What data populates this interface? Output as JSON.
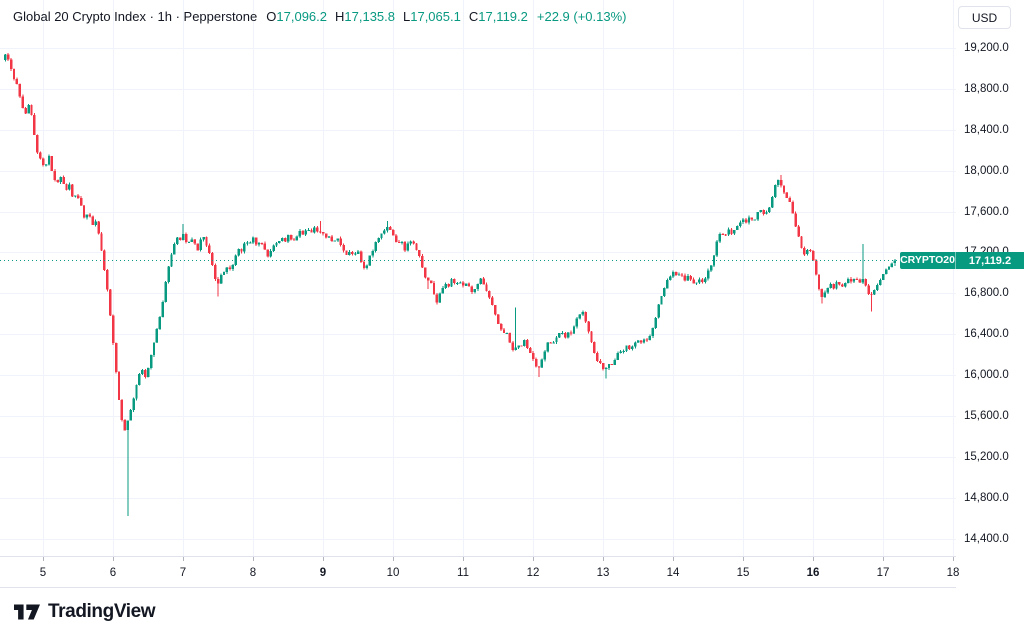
{
  "header": {
    "title": "Global 20 Crypto Index · 1h · Pepperstone",
    "ohlc": [
      {
        "label": "O",
        "value": "17,096.2"
      },
      {
        "label": "H",
        "value": "17,135.8"
      },
      {
        "label": "L",
        "value": "17,065.1"
      },
      {
        "label": "C",
        "value": "17,119.2"
      }
    ],
    "change": "+22.9 (+0.13%)"
  },
  "toolbar": {
    "currency_label": "USD"
  },
  "footer": {
    "logo_text": "TradingView"
  },
  "price_scale": {
    "ticks": [
      {
        "text": "19,200.0",
        "value": 19200
      },
      {
        "text": "18,800.0",
        "value": 18800
      },
      {
        "text": "18,400.0",
        "value": 18400
      },
      {
        "text": "18,000.0",
        "value": 18000
      },
      {
        "text": "17,600.0",
        "value": 17600
      },
      {
        "text": "17,200.0",
        "value": 17200
      },
      {
        "text": "16,800.0",
        "value": 16800
      },
      {
        "text": "16,400.0",
        "value": 16400
      },
      {
        "text": "16,000.0",
        "value": 16000
      },
      {
        "text": "15,600.0",
        "value": 15600
      },
      {
        "text": "15,200.0",
        "value": 15200
      },
      {
        "text": "14,800.0",
        "value": 14800
      },
      {
        "text": "14,400.0",
        "value": 14400
      }
    ],
    "current": {
      "symbol": "CRYPTO20",
      "text": "17,119.2",
      "value": 17119.2
    }
  },
  "time_scale": {
    "ticks": [
      {
        "text": "5",
        "value": 5,
        "bold": false
      },
      {
        "text": "6",
        "value": 6,
        "bold": false
      },
      {
        "text": "7",
        "value": 7,
        "bold": false
      },
      {
        "text": "8",
        "value": 8,
        "bold": false
      },
      {
        "text": "9",
        "value": 9,
        "bold": true
      },
      {
        "text": "10",
        "value": 10,
        "bold": false
      },
      {
        "text": "11",
        "value": 11,
        "bold": false
      },
      {
        "text": "12",
        "value": 12,
        "bold": false
      },
      {
        "text": "13",
        "value": 13,
        "bold": false
      },
      {
        "text": "14",
        "value": 14,
        "bold": false
      },
      {
        "text": "15",
        "value": 15,
        "bold": false
      },
      {
        "text": "16",
        "value": 16,
        "bold": true
      },
      {
        "text": "17",
        "value": 17,
        "bold": false
      },
      {
        "text": "18",
        "value": 18,
        "bold": false
      }
    ]
  },
  "colors": {
    "up": "#089981",
    "down": "#F23645",
    "text": "#131722",
    "grid": "#F0F3FA",
    "axis_border": "#E0E3EB",
    "tick": "#B2B5BE",
    "background": "#FFFFFF",
    "badge": "#089981"
  },
  "chart_data": {
    "type": "candlestick",
    "title": "Global 20 Crypto Index",
    "interval": "1h",
    "provider": "Pepperstone",
    "quote_currency": "USD",
    "last_candle": {
      "open": 17096.2,
      "high": 17135.8,
      "low": 17065.1,
      "close": 17119.2,
      "change": "+22.9",
      "change_pct": "+0.13%"
    },
    "current_price": 17119.2,
    "y_axis": {
      "first_tick": 14400,
      "last_tick": 19200,
      "tick_step": 400
    },
    "x_axis": {
      "label_unit": "day_of_month",
      "start_day": 4.44,
      "end_day": 17.19,
      "days": [
        5,
        6,
        7,
        8,
        9,
        10,
        11,
        12,
        13,
        14,
        15,
        16,
        17,
        18
      ],
      "bold_days": [
        9,
        16
      ]
    },
    "candles_per_day": 24,
    "session_low_wick": 14620,
    "session_high_wick": 19150,
    "price_path_waypoints": [
      [
        4.44,
        19090
      ],
      [
        4.5,
        19140
      ],
      [
        4.58,
        18950
      ],
      [
        4.66,
        18820
      ],
      [
        4.72,
        18640
      ],
      [
        4.78,
        18560
      ],
      [
        4.83,
        18660
      ],
      [
        4.88,
        18420
      ],
      [
        4.94,
        18180
      ],
      [
        5.0,
        18090
      ],
      [
        5.05,
        18010
      ],
      [
        5.1,
        18160
      ],
      [
        5.16,
        17960
      ],
      [
        5.22,
        17860
      ],
      [
        5.28,
        17950
      ],
      [
        5.34,
        17810
      ],
      [
        5.4,
        17860
      ],
      [
        5.45,
        17710
      ],
      [
        5.5,
        17790
      ],
      [
        5.56,
        17660
      ],
      [
        5.62,
        17520
      ],
      [
        5.67,
        17610
      ],
      [
        5.72,
        17470
      ],
      [
        5.78,
        17520
      ],
      [
        5.83,
        17320
      ],
      [
        5.88,
        17120
      ],
      [
        5.93,
        16900
      ],
      [
        5.98,
        16580
      ],
      [
        6.03,
        16280
      ],
      [
        6.08,
        15920
      ],
      [
        6.12,
        15680
      ],
      [
        6.16,
        15520
      ],
      [
        6.2,
        15440
      ],
      [
        6.24,
        15580
      ],
      [
        6.28,
        15680
      ],
      [
        6.33,
        15820
      ],
      [
        6.38,
        15960
      ],
      [
        6.43,
        16090
      ],
      [
        6.47,
        15940
      ],
      [
        6.52,
        16060
      ],
      [
        6.57,
        16220
      ],
      [
        6.62,
        16360
      ],
      [
        6.67,
        16500
      ],
      [
        6.72,
        16660
      ],
      [
        6.78,
        16950
      ],
      [
        6.83,
        17110
      ],
      [
        6.88,
        17260
      ],
      [
        6.93,
        17350
      ],
      [
        6.98,
        17310
      ],
      [
        7.03,
        17400
      ],
      [
        7.08,
        17260
      ],
      [
        7.13,
        17330
      ],
      [
        7.19,
        17290
      ],
      [
        7.24,
        17210
      ],
      [
        7.29,
        17380
      ],
      [
        7.34,
        17300
      ],
      [
        7.4,
        17190
      ],
      [
        7.45,
        17040
      ],
      [
        7.5,
        16860
      ],
      [
        7.55,
        16950
      ],
      [
        7.6,
        17010
      ],
      [
        7.65,
        17060
      ],
      [
        7.71,
        17010
      ],
      [
        7.76,
        17150
      ],
      [
        7.81,
        17250
      ],
      [
        7.86,
        17210
      ],
      [
        7.91,
        17300
      ],
      [
        7.96,
        17280
      ],
      [
        8.02,
        17350
      ],
      [
        8.07,
        17260
      ],
      [
        8.12,
        17310
      ],
      [
        8.17,
        17280
      ],
      [
        8.22,
        17160
      ],
      [
        8.28,
        17210
      ],
      [
        8.33,
        17300
      ],
      [
        8.38,
        17280
      ],
      [
        8.43,
        17350
      ],
      [
        8.48,
        17310
      ],
      [
        8.53,
        17380
      ],
      [
        8.58,
        17310
      ],
      [
        8.64,
        17350
      ],
      [
        8.69,
        17410
      ],
      [
        8.74,
        17360
      ],
      [
        8.79,
        17430
      ],
      [
        8.84,
        17390
      ],
      [
        8.9,
        17440
      ],
      [
        8.95,
        17390
      ],
      [
        9.0,
        17420
      ],
      [
        9.05,
        17330
      ],
      [
        9.1,
        17360
      ],
      [
        9.16,
        17290
      ],
      [
        9.21,
        17350
      ],
      [
        9.26,
        17300
      ],
      [
        9.31,
        17210
      ],
      [
        9.36,
        17160
      ],
      [
        9.41,
        17230
      ],
      [
        9.46,
        17160
      ],
      [
        9.52,
        17210
      ],
      [
        9.57,
        17080
      ],
      [
        9.62,
        17020
      ],
      [
        9.67,
        17130
      ],
      [
        9.72,
        17200
      ],
      [
        9.78,
        17300
      ],
      [
        9.83,
        17370
      ],
      [
        9.88,
        17380
      ],
      [
        9.93,
        17450
      ],
      [
        9.98,
        17420
      ],
      [
        10.03,
        17360
      ],
      [
        10.08,
        17290
      ],
      [
        10.14,
        17330
      ],
      [
        10.19,
        17230
      ],
      [
        10.24,
        17290
      ],
      [
        10.29,
        17330
      ],
      [
        10.34,
        17250
      ],
      [
        10.4,
        17150
      ],
      [
        10.45,
        17040
      ],
      [
        10.5,
        16900
      ],
      [
        10.55,
        16950
      ],
      [
        10.6,
        16800
      ],
      [
        10.65,
        16720
      ],
      [
        10.71,
        16830
      ],
      [
        10.76,
        16900
      ],
      [
        10.81,
        16870
      ],
      [
        10.86,
        16940
      ],
      [
        10.91,
        16880
      ],
      [
        10.97,
        16930
      ],
      [
        11.02,
        16860
      ],
      [
        11.07,
        16910
      ],
      [
        11.12,
        16850
      ],
      [
        11.17,
        16800
      ],
      [
        11.22,
        16880
      ],
      [
        11.28,
        16950
      ],
      [
        11.33,
        16860
      ],
      [
        11.38,
        16800
      ],
      [
        11.43,
        16700
      ],
      [
        11.48,
        16600
      ],
      [
        11.54,
        16480
      ],
      [
        11.59,
        16400
      ],
      [
        11.64,
        16430
      ],
      [
        11.69,
        16310
      ],
      [
        11.74,
        16230
      ],
      [
        11.8,
        16310
      ],
      [
        11.85,
        16260
      ],
      [
        11.9,
        16340
      ],
      [
        11.95,
        16260
      ],
      [
        12.0,
        16200
      ],
      [
        12.05,
        16110
      ],
      [
        12.1,
        16060
      ],
      [
        12.16,
        16160
      ],
      [
        12.21,
        16280
      ],
      [
        12.26,
        16340
      ],
      [
        12.31,
        16300
      ],
      [
        12.36,
        16380
      ],
      [
        12.42,
        16430
      ],
      [
        12.47,
        16360
      ],
      [
        12.52,
        16430
      ],
      [
        12.57,
        16390
      ],
      [
        12.62,
        16520
      ],
      [
        12.68,
        16600
      ],
      [
        12.73,
        16620
      ],
      [
        12.78,
        16520
      ],
      [
        12.83,
        16380
      ],
      [
        12.88,
        16250
      ],
      [
        12.94,
        16150
      ],
      [
        12.99,
        16100
      ],
      [
        13.04,
        16040
      ],
      [
        13.09,
        16120
      ],
      [
        13.14,
        16080
      ],
      [
        13.2,
        16170
      ],
      [
        13.25,
        16250
      ],
      [
        13.3,
        16200
      ],
      [
        13.35,
        16280
      ],
      [
        13.4,
        16250
      ],
      [
        13.46,
        16310
      ],
      [
        13.51,
        16360
      ],
      [
        13.56,
        16300
      ],
      [
        13.61,
        16350
      ],
      [
        13.66,
        16330
      ],
      [
        13.72,
        16420
      ],
      [
        13.77,
        16560
      ],
      [
        13.82,
        16700
      ],
      [
        13.87,
        16810
      ],
      [
        13.92,
        16900
      ],
      [
        13.98,
        16960
      ],
      [
        14.03,
        17020
      ],
      [
        14.08,
        16950
      ],
      [
        14.13,
        17000
      ],
      [
        14.18,
        16930
      ],
      [
        14.24,
        16980
      ],
      [
        14.29,
        16900
      ],
      [
        14.34,
        16870
      ],
      [
        14.39,
        16950
      ],
      [
        14.44,
        16900
      ],
      [
        14.5,
        16980
      ],
      [
        14.55,
        17050
      ],
      [
        14.6,
        17150
      ],
      [
        14.65,
        17300
      ],
      [
        14.7,
        17400
      ],
      [
        14.76,
        17350
      ],
      [
        14.81,
        17420
      ],
      [
        14.86,
        17380
      ],
      [
        14.91,
        17440
      ],
      [
        14.96,
        17480
      ],
      [
        15.02,
        17530
      ],
      [
        15.07,
        17480
      ],
      [
        15.12,
        17550
      ],
      [
        15.17,
        17500
      ],
      [
        15.22,
        17580
      ],
      [
        15.28,
        17620
      ],
      [
        15.33,
        17550
      ],
      [
        15.38,
        17620
      ],
      [
        15.43,
        17700
      ],
      [
        15.48,
        17850
      ],
      [
        15.53,
        17920
      ],
      [
        15.58,
        17830
      ],
      [
        15.63,
        17760
      ],
      [
        15.69,
        17700
      ],
      [
        15.74,
        17560
      ],
      [
        15.79,
        17410
      ],
      [
        15.85,
        17270
      ],
      [
        15.9,
        17170
      ],
      [
        15.96,
        17230
      ],
      [
        16.01,
        17180
      ],
      [
        16.06,
        17000
      ],
      [
        16.11,
        16820
      ],
      [
        16.16,
        16760
      ],
      [
        16.22,
        16840
      ],
      [
        16.27,
        16900
      ],
      [
        16.32,
        16850
      ],
      [
        16.37,
        16920
      ],
      [
        16.42,
        16870
      ],
      [
        16.48,
        16900
      ],
      [
        16.53,
        16950
      ],
      [
        16.58,
        16900
      ],
      [
        16.63,
        16960
      ],
      [
        16.69,
        16900
      ],
      [
        16.74,
        16960
      ],
      [
        16.79,
        16830
      ],
      [
        16.84,
        16760
      ],
      [
        16.89,
        16830
      ],
      [
        16.94,
        16890
      ],
      [
        17.0,
        16950
      ],
      [
        17.05,
        17010
      ],
      [
        17.1,
        17060
      ],
      [
        17.15,
        17096
      ],
      [
        17.19,
        17119
      ]
    ],
    "special_wicks": [
      {
        "day": 6.21,
        "kind": "low",
        "price": 14620
      },
      {
        "day": 7.02,
        "kind": "high",
        "price": 17480
      },
      {
        "day": 7.5,
        "kind": "low",
        "price": 16770
      },
      {
        "day": 8.97,
        "kind": "high",
        "price": 17505
      },
      {
        "day": 9.94,
        "kind": "high",
        "price": 17505
      },
      {
        "day": 10.52,
        "kind": "low",
        "price": 16840
      },
      {
        "day": 11.77,
        "kind": "high",
        "price": 16660
      },
      {
        "day": 12.08,
        "kind": "low",
        "price": 15980
      },
      {
        "day": 13.05,
        "kind": "low",
        "price": 15965
      },
      {
        "day": 15.53,
        "kind": "high",
        "price": 17955
      },
      {
        "day": 16.13,
        "kind": "low",
        "price": 16700
      },
      {
        "day": 16.72,
        "kind": "high",
        "price": 17280
      },
      {
        "day": 16.82,
        "kind": "low",
        "price": 16620
      }
    ]
  }
}
